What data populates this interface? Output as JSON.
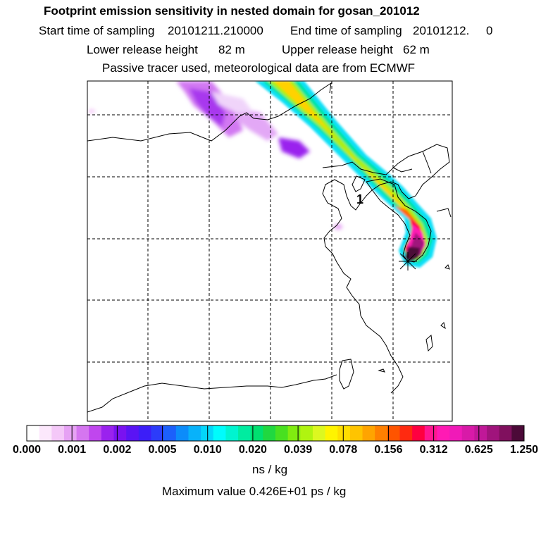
{
  "header": {
    "title": "Footprint emission sensitivity in nested domain for gosan_201012",
    "start_label": "Start time of sampling",
    "start_value": "20101211.210000",
    "end_label": "End time of sampling",
    "end_value": "20101212.     0",
    "lower_label": "Lower release height",
    "lower_value": "82 m",
    "upper_label": "Upper release height",
    "upper_value": "62 m",
    "info": "Passive tracer used, meteorological data are from ECMWF"
  },
  "map": {
    "marker_label": "1"
  },
  "colorbar": {
    "ticks": [
      "0.000",
      "0.001",
      "0.002",
      "0.005",
      "0.010",
      "0.020",
      "0.039",
      "0.078",
      "0.156",
      "0.312",
      "0.625",
      "1.250"
    ],
    "colors": [
      "#ffffff",
      "#fce8fc",
      "#f4c8f8",
      "#e6a2f4",
      "#d576f0",
      "#c046ee",
      "#9a22ee",
      "#7a12f0",
      "#5a14f4",
      "#3c1ef8",
      "#2c3cfa",
      "#1c60fb",
      "#0c8cfa",
      "#08b2fa",
      "#04d6fa",
      "#00fcfc",
      "#00f4d0",
      "#00eca0",
      "#00e070",
      "#20d840",
      "#48e020",
      "#80ec10",
      "#b0f410",
      "#dcf820",
      "#fff400",
      "#ffde00",
      "#ffc400",
      "#ffa400",
      "#ff8000",
      "#ff5400",
      "#ff2a10",
      "#ff0040",
      "#ff1690",
      "#ff1ab4",
      "#f01ab8",
      "#d81aa8",
      "#c01898",
      "#a0147c",
      "#80105e",
      "#4c0a38"
    ],
    "units": "ns / kg"
  },
  "footer": {
    "max_value": "Maximum value  0.426E+01 ps / kg"
  }
}
